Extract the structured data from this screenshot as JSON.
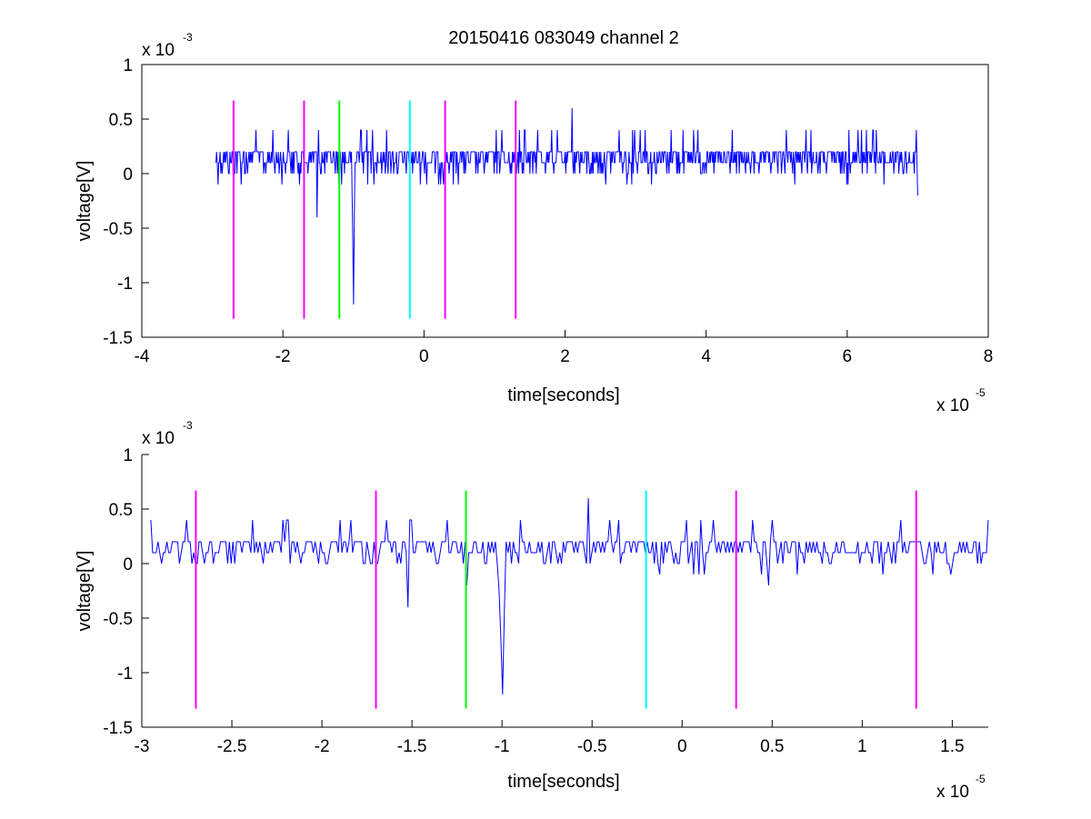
{
  "figure": {
    "title": "20150416 083049 channel 2"
  },
  "chart_data": [
    {
      "type": "line",
      "title": "20150416 083049 channel 2",
      "xlabel": "time[seconds]",
      "ylabel": "voltage[V]",
      "xlim": [
        -4e-05,
        8e-05
      ],
      "ylim": [
        -0.0015,
        0.001
      ],
      "x_ticks": [
        -4e-05,
        -2e-05,
        0,
        2e-05,
        4e-05,
        6e-05,
        8e-05
      ],
      "x_tick_labels": [
        "-4",
        "-2",
        "0",
        "2",
        "4",
        "6",
        "8"
      ],
      "y_ticks": [
        -0.0015,
        -0.001,
        -0.0005,
        0,
        0.0005,
        0.001
      ],
      "y_tick_labels": [
        "-1.5",
        "-1",
        "-0.5",
        "0",
        "0.5",
        "1"
      ],
      "x_multiplier": {
        "base": "x 10",
        "exponent": "-5"
      },
      "y_multiplier": {
        "base": "x 10",
        "exponent": "-3"
      },
      "grid": false,
      "series": [
        {
          "color": "#0000ff",
          "x_start": -2.95e-05,
          "x_end": 7e-05,
          "baseline": 0.0001,
          "noise_levels": [
            0,
            0.0002,
            0.0004
          ],
          "notable_points": [
            {
              "x": -2.7e-05,
              "y": -0.0002
            },
            {
              "x": -1.52e-05,
              "y": -0.0004
            },
            {
              "x": -1e-05,
              "y": -0.0012
            },
            {
              "x": 2.1e-05,
              "y": 0.0006
            },
            {
              "x": 7e-05,
              "y": -0.0002
            }
          ]
        }
      ],
      "vertical_markers": [
        {
          "x": -2.7e-05,
          "y_from": -0.00133,
          "y_to": 0.00067,
          "color": "#ff00ff"
        },
        {
          "x": -1.7e-05,
          "y_from": -0.00133,
          "y_to": 0.00067,
          "color": "#ff00ff"
        },
        {
          "x": -1.2e-05,
          "y_from": -0.00133,
          "y_to": 0.00067,
          "color": "#00ff00"
        },
        {
          "x": -2e-06,
          "y_from": -0.00133,
          "y_to": 0.00067,
          "color": "#00ffff"
        },
        {
          "x": 3e-06,
          "y_from": -0.00133,
          "y_to": 0.00067,
          "color": "#ff00ff"
        },
        {
          "x": 1.3e-05,
          "y_from": -0.00133,
          "y_to": 0.00067,
          "color": "#ff00ff"
        }
      ]
    },
    {
      "type": "line",
      "title": "",
      "xlabel": "time[seconds]",
      "ylabel": "voltage[V]",
      "xlim": [
        -3e-05,
        1.7e-05
      ],
      "ylim": [
        -0.0015,
        0.001
      ],
      "x_ticks": [
        -3e-05,
        -2.5e-05,
        -2e-05,
        -1.5e-05,
        -1e-05,
        -5e-06,
        0,
        5e-06,
        1e-05,
        1.5e-05
      ],
      "x_tick_labels": [
        "-3",
        "-2.5",
        "-2",
        "-1.5",
        "-1",
        "-0.5",
        "0",
        "0.5",
        "1",
        "1.5"
      ],
      "y_ticks": [
        -0.0015,
        -0.001,
        -0.0005,
        0,
        0.0005,
        0.001
      ],
      "y_tick_labels": [
        "-1.5",
        "-1",
        "-0.5",
        "0",
        "0.5",
        "1"
      ],
      "x_multiplier": {
        "base": "x 10",
        "exponent": "-5"
      },
      "y_multiplier": {
        "base": "x 10",
        "exponent": "-3"
      },
      "grid": false,
      "series": [
        {
          "color": "#0000ff",
          "x_start": -2.95e-05,
          "x_end": 1.7e-05,
          "baseline": 0.0001,
          "noise_levels": [
            0,
            0.0002,
            0.0004
          ],
          "notable_points": [
            {
              "x": -2.95e-05,
              "y": 0.0004
            },
            {
              "x": -1.52e-05,
              "y": -0.0004
            },
            {
              "x": -1.2e-05,
              "y": -0.0002
            },
            {
              "x": -1e-05,
              "y": -0.0012
            },
            {
              "x": -5.2e-06,
              "y": 0.0006
            },
            {
              "x": 4.8e-06,
              "y": -0.0002
            },
            {
              "x": 1.7e-05,
              "y": 0.0004
            }
          ]
        }
      ],
      "vertical_markers": [
        {
          "x": -2.7e-05,
          "y_from": -0.00133,
          "y_to": 0.00067,
          "color": "#ff00ff"
        },
        {
          "x": -1.7e-05,
          "y_from": -0.00133,
          "y_to": 0.00067,
          "color": "#ff00ff"
        },
        {
          "x": -1.2e-05,
          "y_from": -0.00133,
          "y_to": 0.00067,
          "color": "#00ff00"
        },
        {
          "x": -2e-06,
          "y_from": -0.00133,
          "y_to": 0.00067,
          "color": "#00ffff"
        },
        {
          "x": 3e-06,
          "y_from": -0.00133,
          "y_to": 0.00067,
          "color": "#ff00ff"
        },
        {
          "x": 1.3e-05,
          "y_from": -0.00133,
          "y_to": 0.00067,
          "color": "#ff00ff"
        }
      ]
    }
  ]
}
